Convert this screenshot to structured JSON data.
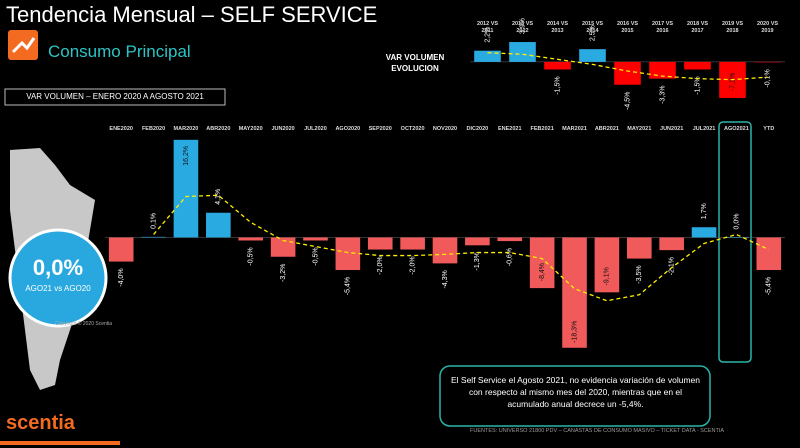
{
  "header": {
    "title": "Tendencia Mensual –  SELF SERVICE",
    "subtitle": "Consumo Principal",
    "period": "VAR VOLUMEN – ENERO 2020 A AGOSTO 2021"
  },
  "kpi": {
    "value": "0,0%",
    "label": "AGO21 vs AGO20"
  },
  "copyright": "Copyright © 2020 Scentia",
  "note": "El Self Service el Agosto 2021, no evidencia variación de volumen con respecto al mismo mes del 2020, mientras que en el acumulado anual decrece un -5,4%.",
  "footer": "FUENTES: UNIVERSO 21800 PDV – CANASTAS DE CONSUMO MASIVO – TICKET DATA  - SCENTIA",
  "logo": "scentia",
  "chart_data": [
    {
      "type": "bar",
      "categories": [
        "ENE2020",
        "FEB2020",
        "MAR2020",
        "ABR2020",
        "MAY2020",
        "JUN2020",
        "JUL2020",
        "AGO2020",
        "SEP2020",
        "OCT2020",
        "NOV2020",
        "DIC2020",
        "ENE2021",
        "FEB2021",
        "MAR2021",
        "ABR2021",
        "MAY2021",
        "JUN2021",
        "JUL2021",
        "AGO2021",
        "YTD"
      ],
      "values": [
        -4.0,
        0.1,
        16.2,
        4.1,
        -0.5,
        -3.2,
        -0.5,
        -5.4,
        -2.0,
        -2.0,
        -4.3,
        -1.3,
        -0.6,
        -8.4,
        -18.3,
        -9.1,
        -3.5,
        -2.1,
        1.7,
        0.0,
        -5.4
      ],
      "value_labels": [
        "-4,0%",
        "0,1%",
        "16,2%",
        "4,1%",
        "-0,5%",
        "-3,2%",
        "-0,5%",
        "-5,4%",
        "-2,0%",
        "-2,0%",
        "-4,3%",
        "-1,3%",
        "-0,6%",
        "-8,4%",
        "-18,3%",
        "-9,1%",
        "-3,5%",
        "-2,1%",
        "1,7%",
        "0,0%",
        "-5,4%"
      ],
      "trend": [
        null,
        0.5,
        6.8,
        7.0,
        2.5,
        -0.5,
        -1.5,
        -2.5,
        -3.0,
        -3.0,
        -2.8,
        -2.5,
        -2.5,
        -3.5,
        -8.5,
        -10.5,
        -9.5,
        -5.0,
        -1.0,
        0.5,
        -2.0
      ],
      "positive_color": "#29abe2",
      "negative_color": "#f05a5a",
      "trend_color": "#ffee00",
      "ylim": [
        -19,
        17
      ]
    },
    {
      "type": "bar",
      "title": "VAR VOLUMEN EVOLUCION",
      "categories": [
        "2012 VS 2011",
        "2013 VS 2012",
        "2014 VS 2013",
        "2015 VS 2014",
        "2016 VS 2015",
        "2017 VS 2016",
        "2018 VS 2017",
        "2019 VS 2018",
        "2020 VS 2019"
      ],
      "values": [
        2.2,
        3.9,
        -1.5,
        2.5,
        -4.5,
        -3.3,
        -1.5,
        -7.1,
        -0.1
      ],
      "value_labels": [
        "2,2%",
        "3,9%",
        "-1,5%",
        "2,5%",
        "-4,5%",
        "-3,3%",
        "-1,5%",
        "-7,1%",
        "-0,1%"
      ],
      "trend": [
        1.8,
        1.5,
        0.5,
        -0.5,
        -1.8,
        -2.8,
        -3.3,
        -3.5,
        -3.0
      ],
      "positive_color": "#29abe2",
      "negative_color": "#ff0000",
      "trend_color": "#ffee00",
      "ylim": [
        -7.5,
        4.3
      ]
    }
  ]
}
